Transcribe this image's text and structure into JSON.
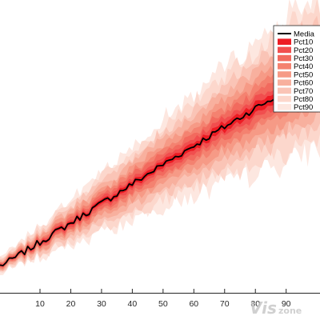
{
  "chart_data": {
    "type": "area",
    "title": "",
    "xlabel": "",
    "ylabel": "",
    "xlim": [
      -3,
      101
    ],
    "xticks": [
      10,
      20,
      30,
      40,
      50,
      60,
      70,
      80,
      90
    ],
    "tick_labels": [
      "10",
      "20",
      "30",
      "40",
      "50",
      "60",
      "70",
      "80",
      "90"
    ],
    "y_axis_visible": false,
    "grid": false,
    "legend_placement": "top-right",
    "legend_labels_visible": [
      "Media",
      "Pct10",
      "Pct20",
      "Pct30",
      "Pct40",
      "Pct50",
      "Pct60",
      "Pct70",
      "Pct80",
      "Pct90"
    ],
    "series": [
      {
        "name": "Media",
        "color": "#000000"
      },
      {
        "name": "Pct10",
        "color": "#ED1C24",
        "half_width_at_x100": 0.025
      },
      {
        "name": "Pct20",
        "color": "#F14E4E",
        "half_width_at_x100": 0.05
      },
      {
        "name": "Pct30",
        "color": "#F26A5E",
        "half_width_at_x100": 0.08
      },
      {
        "name": "Pct40",
        "color": "#F48270",
        "half_width_at_x100": 0.11
      },
      {
        "name": "Pct50",
        "color": "#F69A86",
        "half_width_at_x100": 0.15
      },
      {
        "name": "Pct60",
        "color": "#F8B09E",
        "half_width_at_x100": 0.19
      },
      {
        "name": "Pct70",
        "color": "#FAC4B6",
        "half_width_at_x100": 0.24
      },
      {
        "name": "Pct80",
        "color": "#FCD7CC",
        "half_width_at_x100": 0.29
      },
      {
        "name": "Pct90",
        "color": "#FDE7E0",
        "half_width_at_x100": 0.34
      }
    ],
    "median_trend": {
      "x": [
        -3,
        0,
        20,
        50,
        80,
        100
      ],
      "y": [
        0.02,
        0.04,
        0.21,
        0.47,
        0.72,
        0.87
      ]
    },
    "y_range": [
      -0.1,
      1.2
    ]
  },
  "watermark": {
    "text": "Vis zone",
    "color": "#BDBDBD"
  }
}
